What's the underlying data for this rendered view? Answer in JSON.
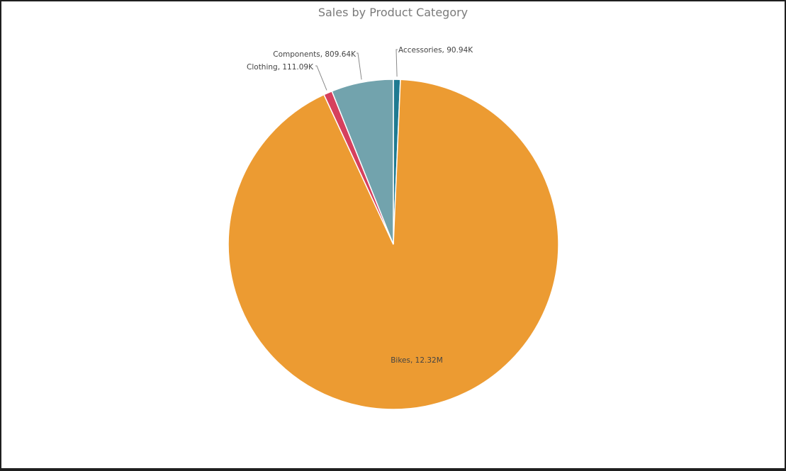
{
  "chart_data": {
    "type": "pie",
    "title": "Sales by Product Category",
    "slices": [
      {
        "category": "Accessories",
        "value": 90.94,
        "unit": "K",
        "label": "Accessories, 90.94K",
        "color": "#1f7a91"
      },
      {
        "category": "Bikes",
        "value": 12320,
        "unit": "K",
        "label": "Bikes, 12.32M",
        "color": "#ec9b32"
      },
      {
        "category": "Clothing",
        "value": 111.09,
        "unit": "K",
        "label": "Clothing, 111.09K",
        "color": "#d6405d"
      },
      {
        "category": "Components",
        "value": 809.64,
        "unit": "K",
        "label": "Components, 809.64K",
        "color": "#72a3ad"
      }
    ],
    "start_angle": "top, clockwise",
    "legend": "none"
  }
}
